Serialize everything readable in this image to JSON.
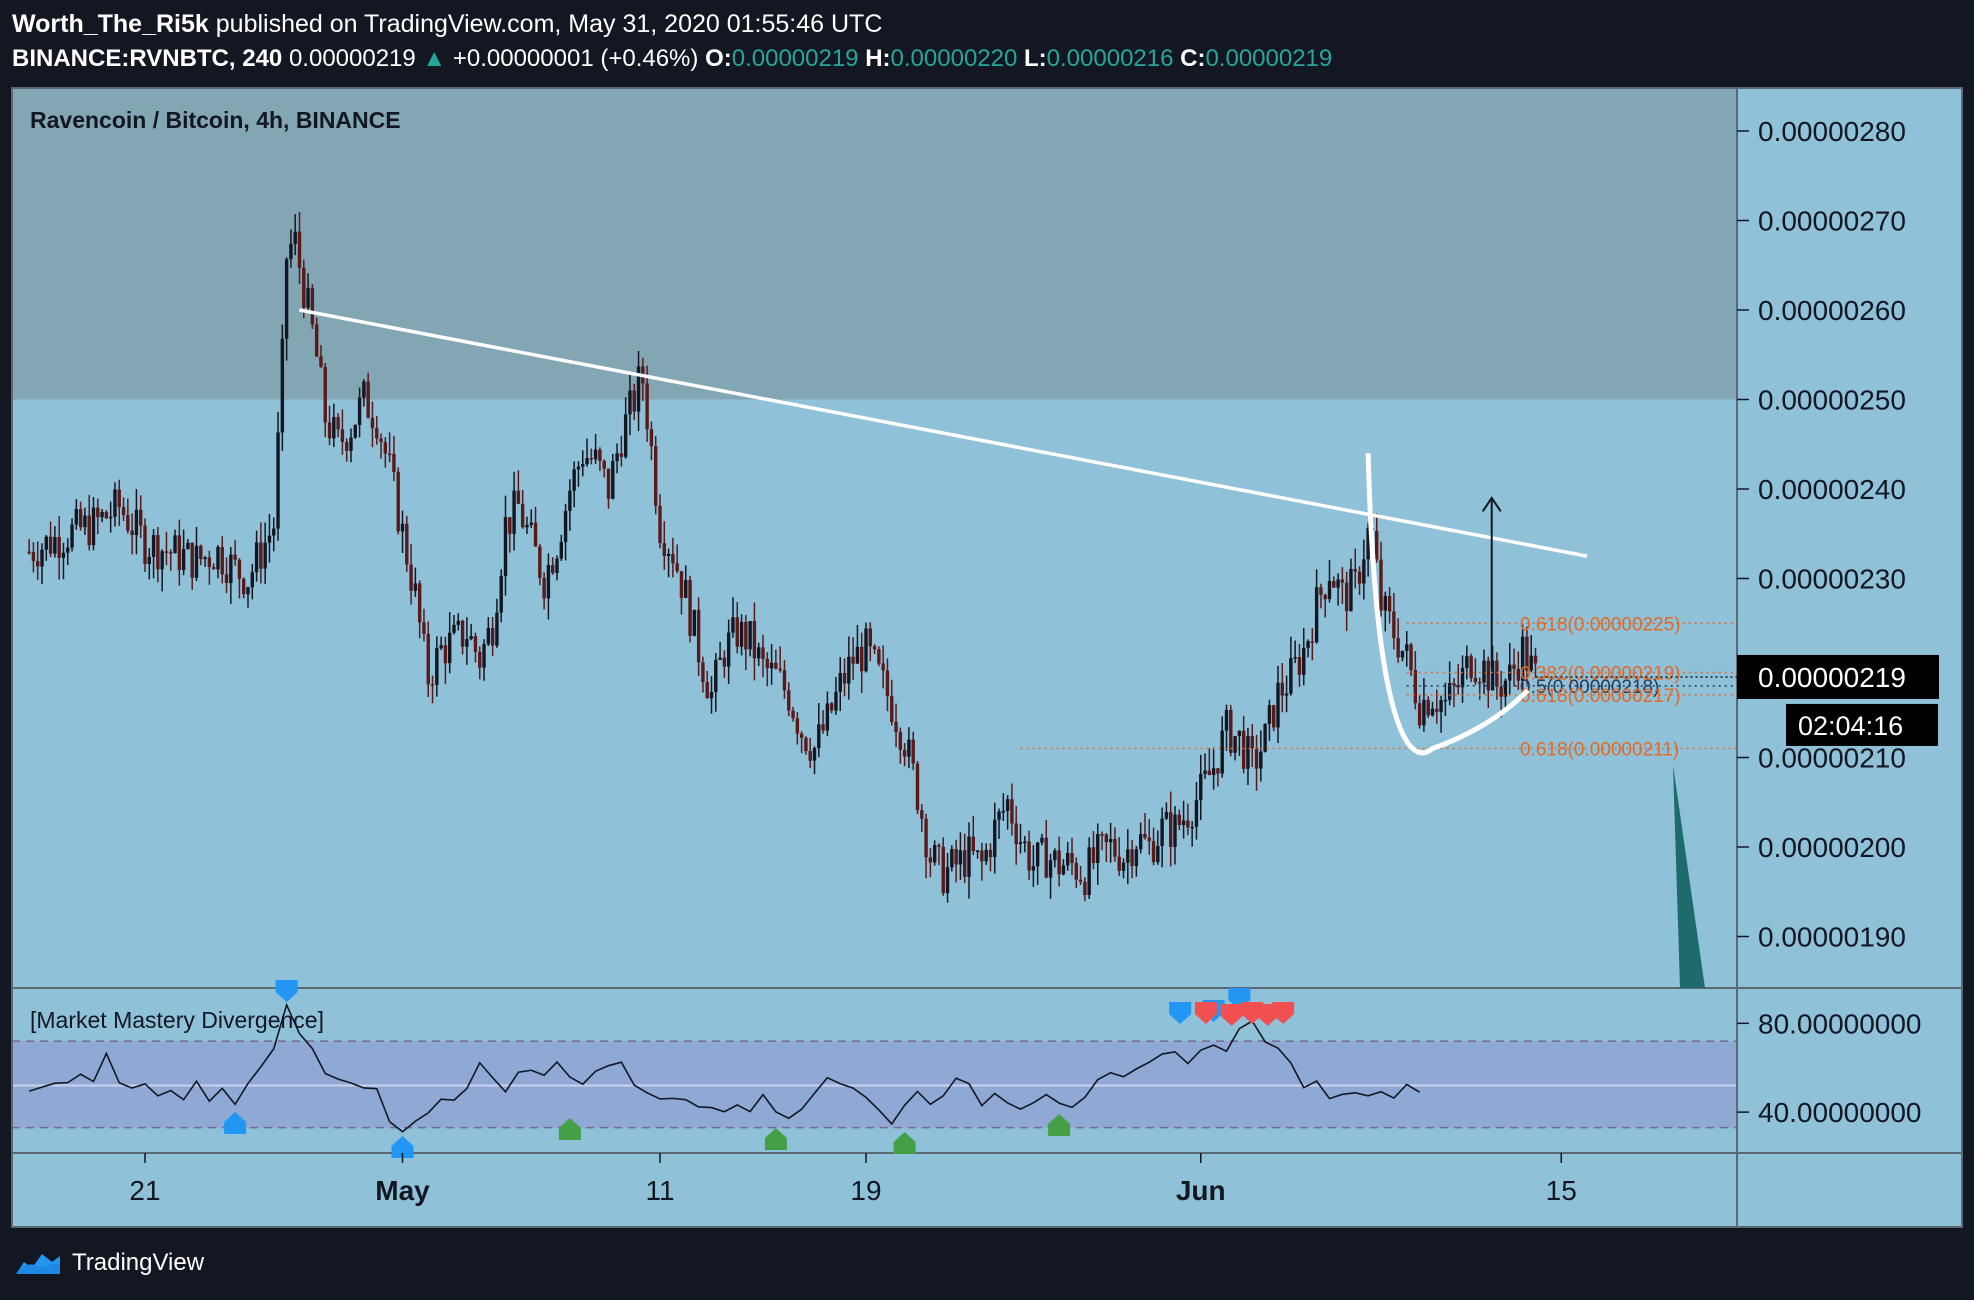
{
  "header": {
    "author": "Worth_The_Ri5k",
    "published_text": "published on TradingView.com, May 31, 2020 01:55:46 UTC",
    "symbol": "BINANCE:RVNBTC, 240",
    "last_price": "0.00000219",
    "change": "+0.00000001 (+0.46%)",
    "o_label": "O:",
    "o_value": "0.00000219",
    "h_label": "H:",
    "h_value": "0.00000220",
    "l_label": "L:",
    "l_value": "0.00000216",
    "c_label": "C:",
    "c_value": "0.00000219"
  },
  "chart_data": {
    "type": "candlestick",
    "title": "Ravencoin / Bitcoin, 4h, BINANCE",
    "price_axis": {
      "ticks": [
        "0.00000280",
        "0.00000270",
        "0.00000260",
        "0.00000250",
        "0.00000240",
        "0.00000230",
        "0.00000210",
        "0.00000200",
        "0.00000190"
      ],
      "tick_values": [
        2.8,
        2.7,
        2.6,
        2.5,
        2.4,
        2.3,
        2.1,
        2.0,
        1.9
      ],
      "current_price_label": "0.00000219",
      "current_price": 2.19,
      "countdown_label": "02:04:16",
      "unit_note": "values ×1e-6 BTC"
    },
    "time_axis": {
      "ticks": [
        "21",
        "May",
        "11",
        "19",
        "Jun",
        "15"
      ],
      "tick_days": [
        0,
        10,
        20,
        28,
        41,
        55
      ]
    },
    "resistance_zone": {
      "from": 2.5,
      "to": 2.86
    },
    "trendline": {
      "start": [
        6,
        2.6
      ],
      "end": [
        56,
        2.325
      ]
    },
    "fib_levels": [
      {
        "label": "0.618(0.00000225)",
        "value": 2.25
      },
      {
        "label": "0.382(0.00000219)",
        "value": 2.195
      },
      {
        "label": "0.5(0.00000218)",
        "value": 2.18
      },
      {
        "label": "0.618(0.00000217)",
        "value": 2.17
      },
      {
        "label": "0.618(0.00000211)",
        "value": 2.11
      }
    ],
    "close_path": [
      [
        -4.5,
        2.33
      ],
      [
        -3,
        2.35
      ],
      [
        -2,
        2.36
      ],
      [
        -1,
        2.38
      ],
      [
        0,
        2.34
      ],
      [
        1,
        2.33
      ],
      [
        2,
        2.32
      ],
      [
        2.8,
        2.33
      ],
      [
        3.5,
        2.31
      ],
      [
        4,
        2.3
      ],
      [
        4.5,
        2.33
      ],
      [
        5,
        2.36
      ],
      [
        5.3,
        2.52
      ],
      [
        5.5,
        2.66
      ],
      [
        5.8,
        2.68
      ],
      [
        6.2,
        2.62
      ],
      [
        6.6,
        2.56
      ],
      [
        7,
        2.48
      ],
      [
        7.5,
        2.45
      ],
      [
        8,
        2.47
      ],
      [
        8.5,
        2.5
      ],
      [
        9,
        2.48
      ],
      [
        9.5,
        2.42
      ],
      [
        10,
        2.35
      ],
      [
        10.5,
        2.28
      ],
      [
        10.8,
        2.22
      ],
      [
        11,
        2.19
      ],
      [
        11.5,
        2.22
      ],
      [
        12,
        2.23
      ],
      [
        12.5,
        2.24
      ],
      [
        13,
        2.21
      ],
      [
        13.5,
        2.25
      ],
      [
        14,
        2.36
      ],
      [
        14.5,
        2.38
      ],
      [
        15,
        2.34
      ],
      [
        15.5,
        2.3
      ],
      [
        16,
        2.34
      ],
      [
        16.5,
        2.4
      ],
      [
        17,
        2.44
      ],
      [
        17.5,
        2.43
      ],
      [
        18,
        2.4
      ],
      [
        18.5,
        2.46
      ],
      [
        19,
        2.5
      ],
      [
        19.3,
        2.53
      ],
      [
        19.6,
        2.46
      ],
      [
        20,
        2.36
      ],
      [
        20.5,
        2.33
      ],
      [
        21,
        2.28
      ],
      [
        21.5,
        2.22
      ],
      [
        22,
        2.17
      ],
      [
        22.5,
        2.22
      ],
      [
        23,
        2.24
      ],
      [
        23.5,
        2.23
      ],
      [
        24,
        2.2
      ],
      [
        24.5,
        2.19
      ],
      [
        25,
        2.17
      ],
      [
        25.5,
        2.13
      ],
      [
        26,
        2.11
      ],
      [
        26.5,
        2.14
      ],
      [
        27,
        2.18
      ],
      [
        27.5,
        2.21
      ],
      [
        28,
        2.22
      ],
      [
        28.5,
        2.19
      ],
      [
        29,
        2.16
      ],
      [
        29.5,
        2.12
      ],
      [
        30,
        2.06
      ],
      [
        30.5,
        1.99
      ],
      [
        31,
        1.97
      ],
      [
        31.5,
        1.98
      ],
      [
        32,
        1.99
      ],
      [
        32.5,
        1.98
      ],
      [
        33,
        2.02
      ],
      [
        33.5,
        2.05
      ],
      [
        34,
        2.01
      ],
      [
        34.5,
        1.98
      ],
      [
        35,
        1.99
      ],
      [
        35.5,
        1.98
      ],
      [
        36,
        1.98
      ],
      [
        36.5,
        1.97
      ],
      [
        37,
        1.99
      ],
      [
        37.5,
        2.0
      ],
      [
        38,
        1.99
      ],
      [
        38.5,
        2.01
      ],
      [
        39,
        2.0
      ],
      [
        39.5,
        2.02
      ],
      [
        40,
        2.02
      ],
      [
        40.5,
        2.04
      ],
      [
        41,
        2.06
      ],
      [
        41.5,
        2.09
      ],
      [
        42,
        2.13
      ],
      [
        42.5,
        2.12
      ],
      [
        43,
        2.09
      ],
      [
        43.5,
        2.12
      ],
      [
        44,
        2.17
      ],
      [
        44.5,
        2.19
      ],
      [
        45,
        2.22
      ],
      [
        45.5,
        2.27
      ],
      [
        46,
        2.31
      ],
      [
        46.5,
        2.28
      ],
      [
        47,
        2.29
      ],
      [
        47.3,
        2.33
      ],
      [
        47.6,
        2.36
      ],
      [
        48,
        2.27
      ],
      [
        48.5,
        2.24
      ],
      [
        49,
        2.21
      ],
      [
        49.5,
        2.16
      ],
      [
        50,
        2.17
      ],
      [
        50.5,
        2.16
      ],
      [
        51,
        2.18
      ],
      [
        51.5,
        2.21
      ],
      [
        52,
        2.2
      ],
      [
        52.5,
        2.18
      ],
      [
        53,
        2.19
      ],
      [
        53.5,
        2.22
      ],
      [
        54,
        2.19
      ]
    ],
    "indicator": {
      "name": "[Market Mastery Divergence]",
      "ticks": [
        "80.00000000",
        "40.00000000"
      ],
      "tick_values": [
        80,
        40
      ],
      "bands": [
        72,
        33
      ],
      "midline": 52,
      "path": [
        [
          -4.5,
          48
        ],
        [
          -3.5,
          55
        ],
        [
          -3,
          52
        ],
        [
          -2.5,
          60
        ],
        [
          -2,
          52
        ],
        [
          -1.5,
          65
        ],
        [
          -1,
          56
        ],
        [
          -0.5,
          50
        ],
        [
          0,
          55
        ],
        [
          0.5,
          49
        ],
        [
          1,
          52
        ],
        [
          1.5,
          47
        ],
        [
          2,
          51
        ],
        [
          2.5,
          44
        ],
        [
          3,
          50
        ],
        [
          3.5,
          42
        ],
        [
          4,
          52
        ],
        [
          4.5,
          60
        ],
        [
          5,
          66
        ],
        [
          5.5,
          88
        ],
        [
          6,
          75
        ],
        [
          6.5,
          66
        ],
        [
          7,
          56
        ],
        [
          7.5,
          52
        ],
        [
          8,
          55
        ],
        [
          8.5,
          50
        ],
        [
          9,
          52
        ],
        [
          9.5,
          38
        ],
        [
          10,
          30
        ],
        [
          10.5,
          34
        ],
        [
          11,
          42
        ],
        [
          11.5,
          47
        ],
        [
          12,
          48
        ],
        [
          12.5,
          50
        ],
        [
          13,
          60
        ],
        [
          13.5,
          56
        ],
        [
          14,
          52
        ],
        [
          14.5,
          56
        ],
        [
          15,
          60
        ],
        [
          15.5,
          55
        ],
        [
          16,
          62
        ],
        [
          16.5,
          58
        ],
        [
          17,
          54
        ],
        [
          17.5,
          58
        ],
        [
          18,
          62
        ],
        [
          18.5,
          60
        ],
        [
          19,
          54
        ],
        [
          19.5,
          50
        ],
        [
          20,
          48
        ],
        [
          20.5,
          44
        ],
        [
          21,
          46
        ],
        [
          21.5,
          43
        ],
        [
          22,
          45
        ],
        [
          22.5,
          42
        ],
        [
          23,
          46
        ],
        [
          23.5,
          43
        ],
        [
          24,
          45
        ],
        [
          24.5,
          40
        ],
        [
          25,
          38
        ],
        [
          25.5,
          43
        ],
        [
          26,
          50
        ],
        [
          26.5,
          56
        ],
        [
          27,
          54
        ],
        [
          27.5,
          50
        ],
        [
          28,
          46
        ],
        [
          28.5,
          40
        ],
        [
          29,
          37
        ],
        [
          29.5,
          44
        ],
        [
          30,
          48
        ],
        [
          30.5,
          46
        ],
        [
          31,
          50
        ],
        [
          31.5,
          53
        ],
        [
          32,
          50
        ],
        [
          32.5,
          45
        ],
        [
          33,
          48
        ],
        [
          33.5,
          46
        ],
        [
          34,
          44
        ],
        [
          34.5,
          46
        ],
        [
          35,
          50
        ],
        [
          35.5,
          46
        ],
        [
          36,
          44
        ],
        [
          36.5,
          48
        ],
        [
          37,
          52
        ],
        [
          37.5,
          55
        ],
        [
          38,
          53
        ],
        [
          38.5,
          58
        ],
        [
          39,
          60
        ],
        [
          39.5,
          65
        ],
        [
          40,
          70
        ],
        [
          40.5,
          62
        ],
        [
          41,
          66
        ],
        [
          41.5,
          72
        ],
        [
          42,
          70
        ],
        [
          42.5,
          76
        ],
        [
          43,
          80
        ],
        [
          43.5,
          74
        ],
        [
          44,
          66
        ],
        [
          44.5,
          60
        ],
        [
          45,
          54
        ],
        [
          45.5,
          52
        ],
        [
          46,
          48
        ],
        [
          46.5,
          50
        ],
        [
          47,
          47
        ],
        [
          47.5,
          50
        ],
        [
          48,
          52
        ],
        [
          48.5,
          48
        ],
        [
          49,
          50
        ],
        [
          49.5,
          52
        ]
      ],
      "bear_markers": [
        5.5,
        43.5
      ],
      "bull_markers": [
        3.5,
        10,
        16.5,
        24.5,
        29.5,
        35.5
      ]
    }
  },
  "footer": {
    "brand": "TradingView"
  }
}
